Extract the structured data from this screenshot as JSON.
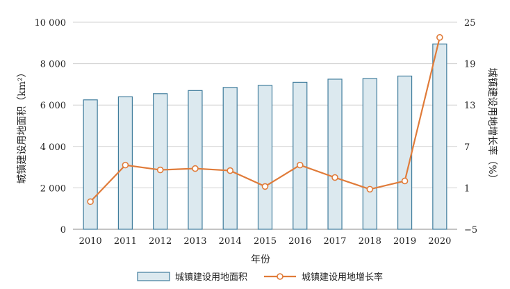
{
  "chart_data": {
    "type": "bar",
    "categories": [
      "2010",
      "2011",
      "2012",
      "2013",
      "2014",
      "2015",
      "2016",
      "2017",
      "2018",
      "2019",
      "2020"
    ],
    "series": [
      {
        "name": "城镇建设用地面积",
        "type": "bar",
        "axis": "left",
        "values": [
          6250,
          6400,
          6550,
          6700,
          6850,
          6950,
          7100,
          7250,
          7280,
          7400,
          8950
        ]
      },
      {
        "name": "城镇建设用地增长率",
        "type": "line",
        "axis": "right",
        "values": [
          -1.0,
          4.3,
          3.6,
          3.8,
          3.5,
          1.2,
          4.3,
          2.5,
          0.8,
          2.0,
          22.8
        ]
      }
    ],
    "xlabel": "年份",
    "ylabel_left": "城镇建设用地面积（km²）",
    "ylabel_right": "城镇建设用地增长率（%）",
    "ylim_left": [
      0,
      10000
    ],
    "ylim_right": [
      -5,
      25
    ],
    "yticks_left": [
      "0",
      "2 000",
      "4 000",
      "6 000",
      "8 000",
      "10 000"
    ],
    "yticks_right": [
      "−5",
      "1",
      "7",
      "13",
      "19",
      "25"
    ],
    "grid": "horizontal",
    "legend_position": "bottom",
    "colors": {
      "bar_fill": "#dce9ef",
      "bar_stroke": "#3f7c9c",
      "line": "#e07b39",
      "marker_fill": "#ffffff",
      "grid": "#d0d0d0"
    }
  }
}
